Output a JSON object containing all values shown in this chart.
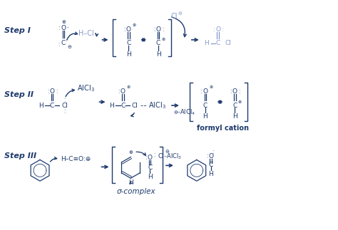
{
  "bg_color": "#ffffff",
  "dark": "#1e3a6e",
  "light": "#8899cc",
  "step1": "Step I",
  "step2": "Step II",
  "step3": "Step III",
  "formyl": "formyl cation",
  "sigma": "σ-complex"
}
